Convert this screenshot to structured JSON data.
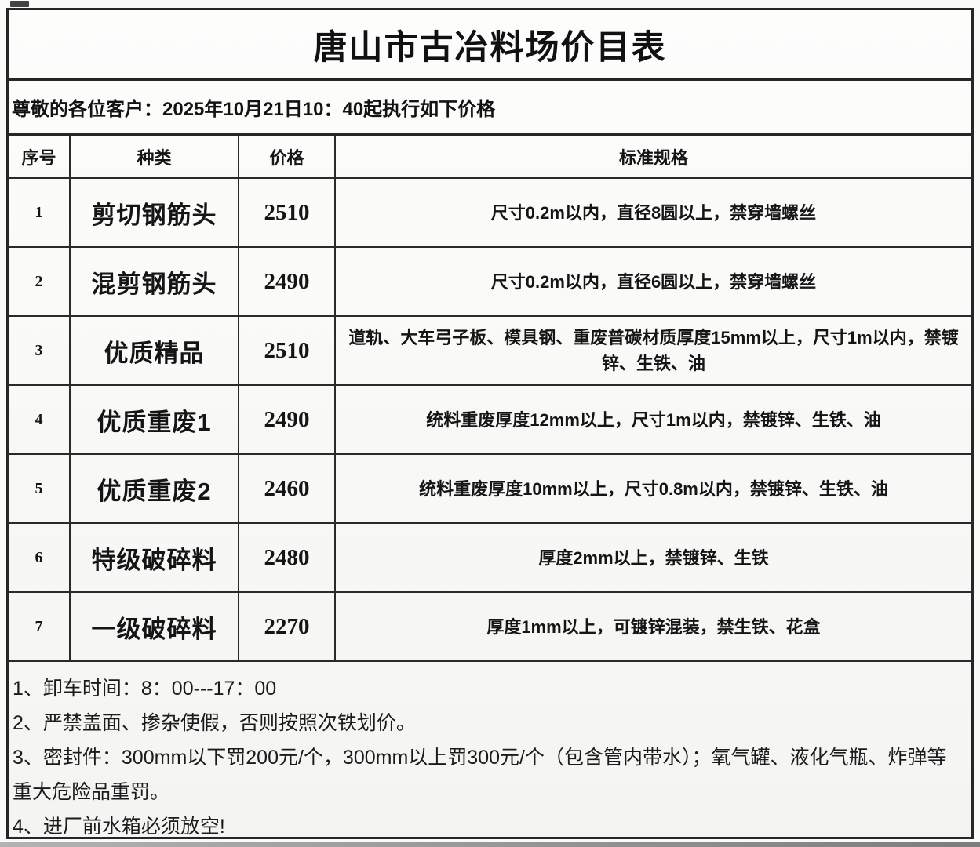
{
  "title": "唐山市古冶料场价目表",
  "notice": "尊敬的各位客户：2025年10月21日10：40起执行如下价格",
  "table": {
    "headers": [
      "序号",
      "种类",
      "价格",
      "标准规格"
    ],
    "rows": [
      {
        "no": "1",
        "category": "剪切钢筋头",
        "price": "2510",
        "spec": "尺寸0.2m以内，直径8圆以上，禁穿墙螺丝"
      },
      {
        "no": "2",
        "category": "混剪钢筋头",
        "price": "2490",
        "spec": "尺寸0.2m以内，直径6圆以上，禁穿墙螺丝"
      },
      {
        "no": "3",
        "category": "优质精品",
        "price": "2510",
        "spec": "道轨、大车弓子板、模具钢、重废普碳材质厚度15mm以上，尺寸1m以内，禁镀锌、生铁、油"
      },
      {
        "no": "4",
        "category": "优质重废1",
        "price": "2490",
        "spec": "统料重废厚度12mm以上，尺寸1m以内，禁镀锌、生铁、油"
      },
      {
        "no": "5",
        "category": "优质重废2",
        "price": "2460",
        "spec": "统料重废厚度10mm以上，尺寸0.8m以内，禁镀锌、生铁、油"
      },
      {
        "no": "6",
        "category": "特级破碎料",
        "price": "2480",
        "spec": "厚度2mm以上，禁镀锌、生铁"
      },
      {
        "no": "7",
        "category": "一级破碎料",
        "price": "2270",
        "spec": "厚度1mm以上，可镀锌混装，禁生铁、花盒"
      }
    ]
  },
  "notes": [
    "1、卸车时间：8：00---17：00",
    "2、严禁盖面、掺杂使假，否则按照次铁划价。",
    "3、密封件：300mm以下罚200元/个，300mm以上罚300元/个（包含管内带水）；氧气罐、液化气瓶、炸弹等重大危险品重罚。",
    "4、进厂前水箱必须放空!"
  ],
  "colors": {
    "text": "#151515",
    "border": "#262626",
    "background": "#fafaf8",
    "photo_edge": "#9a9a9a"
  }
}
